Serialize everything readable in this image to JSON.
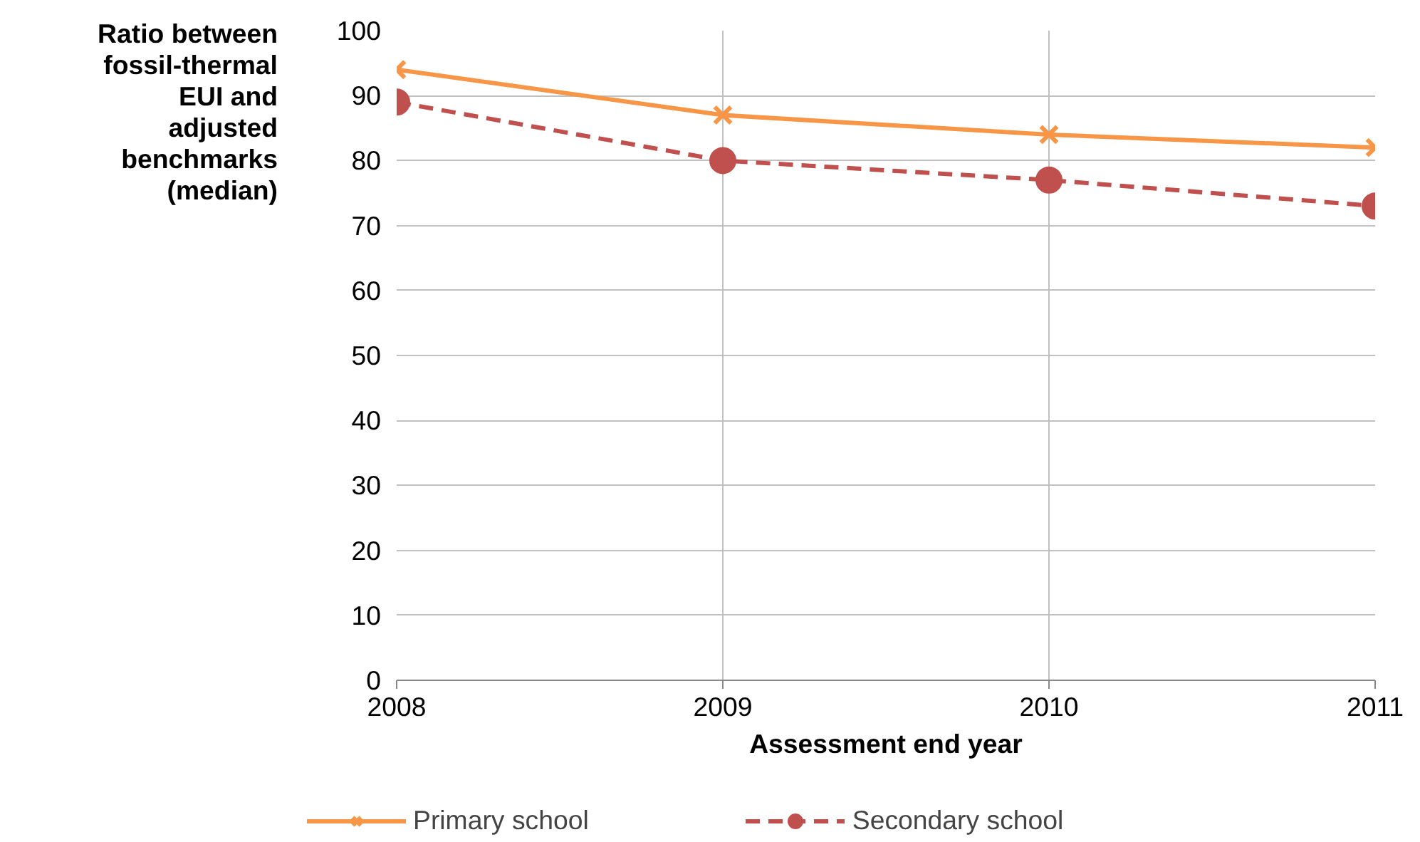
{
  "chart_data": {
    "type": "line",
    "xlabel": "Assessment end year",
    "ylabel": "Ratio between fossil-thermal EUI and adjusted benchmarks (median)",
    "x": [
      2008,
      2009,
      2010,
      2011
    ],
    "xlim": [
      2008,
      2011
    ],
    "xticks": [
      2008,
      2009,
      2010,
      2011
    ],
    "ylim": [
      0,
      100
    ],
    "yticks": [
      0,
      10,
      20,
      30,
      40,
      50,
      60,
      70,
      80,
      90,
      100
    ],
    "grid": true,
    "legend": "bottom",
    "series": [
      {
        "name": "Primary school",
        "color": "#f79646",
        "marker": "cross",
        "line_style": "solid",
        "values": [
          94,
          87,
          84,
          82
        ]
      },
      {
        "name": "Secondary school",
        "color": "#c0504d",
        "marker": "circle",
        "line_style": "dashed",
        "values": [
          89,
          80,
          77,
          73
        ]
      }
    ]
  }
}
